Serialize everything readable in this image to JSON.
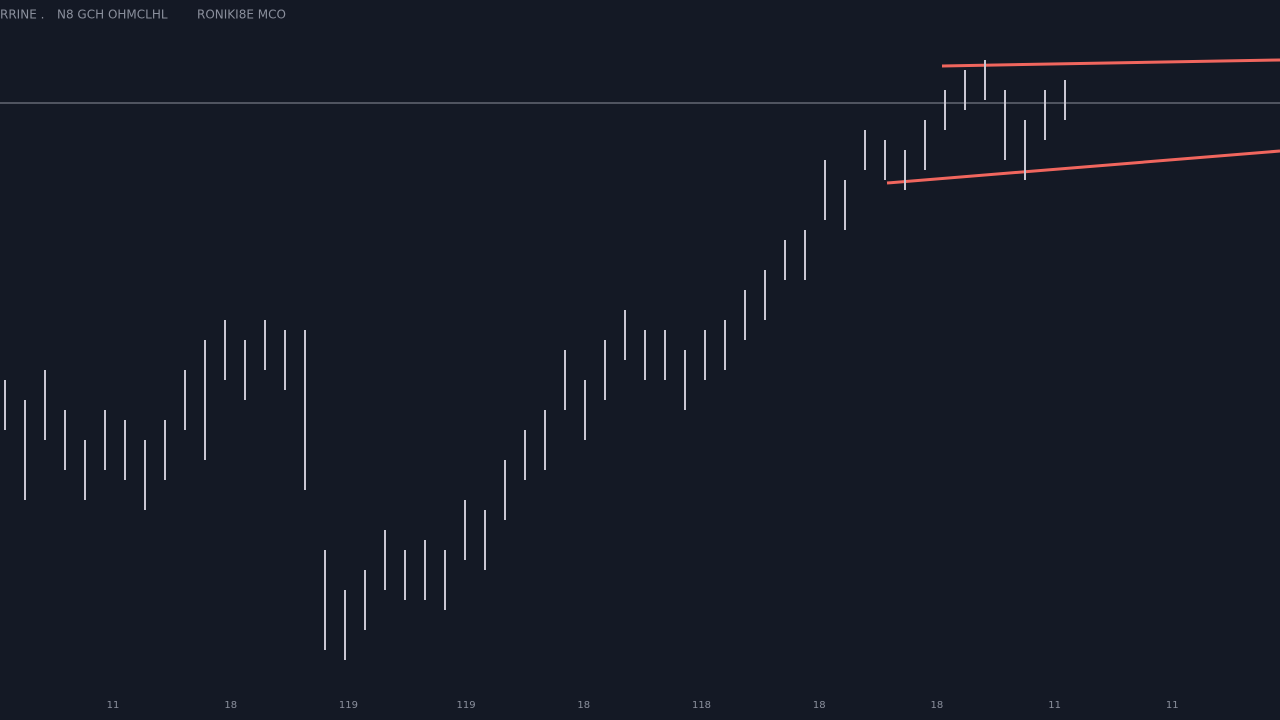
{
  "header": {
    "symbol": "RRINE .",
    "info": "N8 GCH OHMCLHL",
    "extra": "RONIKI8E MCO"
  },
  "chart_data": {
    "type": "range-bar",
    "color": "#c9c6d2",
    "categories": [
      null,
      null,
      null,
      null,
      null,
      null,
      null,
      null,
      null,
      null,
      null,
      null,
      null,
      null,
      null,
      null,
      null,
      null,
      null,
      null,
      null,
      null,
      null,
      null,
      null,
      null,
      null,
      null,
      null,
      null,
      null,
      null,
      null,
      null,
      null,
      null,
      null,
      null,
      null,
      null,
      null,
      null,
      null,
      null,
      null,
      null,
      null,
      null,
      null,
      null,
      null,
      null,
      null,
      null
    ],
    "high": [
      31,
      29,
      32,
      28,
      25,
      28,
      27,
      25,
      27,
      32,
      35,
      37,
      35,
      37,
      36,
      36,
      14,
      10,
      12,
      16,
      14,
      15,
      14,
      19,
      18,
      23,
      26,
      28,
      34,
      31,
      35,
      38,
      36,
      36,
      34,
      36,
      37,
      40,
      42,
      45,
      46,
      53,
      51,
      56,
      55,
      54,
      57,
      60,
      62,
      63,
      60,
      57,
      60,
      61
    ],
    "low": [
      26,
      19,
      25,
      22,
      19,
      22,
      21,
      18,
      21,
      26,
      23,
      31,
      29,
      32,
      30,
      20,
      4,
      3,
      6,
      10,
      9,
      9,
      8,
      13,
      12,
      17,
      21,
      22,
      28,
      25,
      29,
      33,
      31,
      31,
      28,
      31,
      32,
      35,
      37,
      41,
      41,
      47,
      46,
      52,
      51,
      50,
      52,
      56,
      58,
      59,
      53,
      51,
      55,
      57
    ],
    "hline": 58.7,
    "ylim": [
      0,
      69
    ],
    "x_labels": [
      "11",
      "18",
      "119",
      "119",
      "18",
      "118",
      "18",
      "18",
      "11",
      "11"
    ]
  }
}
